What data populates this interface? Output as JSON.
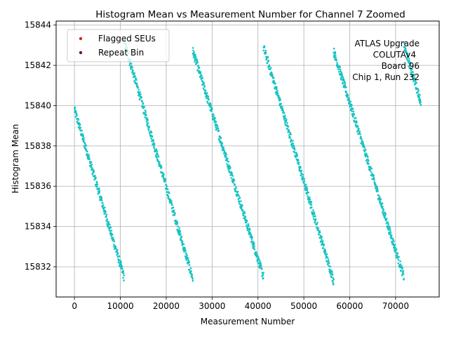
{
  "chart_data": {
    "type": "scatter",
    "title": "Histogram Mean vs Measurement Number for Channel 7 Zoomed",
    "xlabel": "Measurement Number",
    "ylabel": "Histogram Mean",
    "xlim": [
      -4000,
      79500
    ],
    "ylim": [
      15830.5,
      15844.2
    ],
    "x_ticks": [
      0,
      10000,
      20000,
      30000,
      40000,
      50000,
      60000,
      70000
    ],
    "x_tick_labels": [
      "0",
      "10000",
      "20000",
      "30000",
      "40000",
      "50000",
      "60000",
      "70000"
    ],
    "y_ticks": [
      15832,
      15834,
      15836,
      15838,
      15840,
      15842,
      15844
    ],
    "y_tick_labels": [
      "15832",
      "15834",
      "15836",
      "15838",
      "15840",
      "15842",
      "15844"
    ],
    "grid": true,
    "legend_position": "top-left",
    "legend": [
      {
        "label": "Flagged SEUs",
        "color": "#d62728"
      },
      {
        "label": "Repeat Bin",
        "color": "#6a0d5a"
      }
    ],
    "annotation": [
      "ATLAS Upgrade",
      "COLUTAv4",
      "Board 96",
      "Chip 1, Run 232"
    ],
    "point_color": "#17c3c3",
    "segments": [
      {
        "x_start": 0,
        "x_end": 10800,
        "y_start": 15839.8,
        "y_end": 15831.5
      },
      {
        "x_start": 10800,
        "x_end": 25800,
        "y_start": 15843.2,
        "y_end": 15831.4
      },
      {
        "x_start": 25800,
        "x_end": 41200,
        "y_start": 15842.7,
        "y_end": 15831.5
      },
      {
        "x_start": 41200,
        "x_end": 56500,
        "y_start": 15842.9,
        "y_end": 15831.3
      },
      {
        "x_start": 56500,
        "x_end": 71800,
        "y_start": 15842.7,
        "y_end": 15831.5
      },
      {
        "x_start": 71800,
        "x_end": 75500,
        "y_start": 15843.0,
        "y_end": 15840.2
      }
    ]
  }
}
